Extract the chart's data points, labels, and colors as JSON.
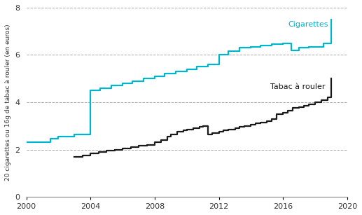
{
  "cigarettes_x": [
    2000,
    2001,
    2001.5,
    2002,
    2002.5,
    2003,
    2003.5,
    2004,
    2004.3,
    2004.6,
    2005,
    2005.3,
    2005.6,
    2006,
    2006.3,
    2006.6,
    2007,
    2007.3,
    2007.6,
    2008,
    2008.3,
    2008.6,
    2009,
    2009.3,
    2009.6,
    2010,
    2010.3,
    2010.6,
    2011,
    2011.3,
    2011.6,
    2012,
    2012.3,
    2012.6,
    2013,
    2013.3,
    2013.6,
    2014,
    2014.3,
    2014.6,
    2015,
    2015.3,
    2015.6,
    2016,
    2016.3,
    2016.5,
    2016.8,
    2017,
    2017.3,
    2017.6,
    2018,
    2018.5,
    2019
  ],
  "cigarettes_y": [
    2.3,
    2.3,
    2.45,
    2.55,
    2.55,
    2.65,
    2.65,
    4.5,
    4.5,
    4.6,
    4.6,
    4.7,
    4.7,
    4.8,
    4.8,
    4.9,
    4.9,
    5.0,
    5.0,
    5.1,
    5.1,
    5.2,
    5.2,
    5.3,
    5.3,
    5.4,
    5.4,
    5.5,
    5.5,
    5.6,
    5.6,
    6.0,
    6.0,
    6.15,
    6.15,
    6.3,
    6.3,
    6.35,
    6.35,
    6.4,
    6.4,
    6.45,
    6.45,
    6.5,
    6.5,
    6.2,
    6.2,
    6.3,
    6.3,
    6.35,
    6.35,
    6.5,
    7.5
  ],
  "tabac_x": [
    2003,
    2003.5,
    2004,
    2004.5,
    2005,
    2005.5,
    2006,
    2006.5,
    2007,
    2007.5,
    2008,
    2008.4,
    2008.8,
    2009,
    2009.4,
    2009.8,
    2010,
    2010.4,
    2010.8,
    2011,
    2011.3,
    2011.6,
    2012,
    2012.3,
    2012.6,
    2013,
    2013.3,
    2013.6,
    2014,
    2014.3,
    2014.6,
    2015,
    2015.3,
    2015.6,
    2016,
    2016.3,
    2016.6,
    2017,
    2017.3,
    2017.6,
    2018,
    2018.4,
    2018.8,
    2019
  ],
  "tabac_y": [
    1.7,
    1.75,
    1.85,
    1.9,
    1.95,
    2.0,
    2.05,
    2.1,
    2.15,
    2.2,
    2.3,
    2.4,
    2.55,
    2.65,
    2.75,
    2.8,
    2.85,
    2.9,
    2.95,
    3.0,
    2.65,
    2.7,
    2.75,
    2.8,
    2.85,
    2.9,
    2.95,
    3.0,
    3.05,
    3.1,
    3.15,
    3.2,
    3.3,
    3.5,
    3.55,
    3.65,
    3.75,
    3.8,
    3.85,
    3.9,
    4.0,
    4.1,
    4.2,
    5.0
  ],
  "cig_color": "#00b4cc",
  "tabac_color": "#1a1a1a",
  "ylabel": "20 cigarettes ou 16g de tabac à rouler (en euros)",
  "xlim": [
    2000,
    2020
  ],
  "ylim": [
    0,
    8
  ],
  "yticks": [
    0,
    2,
    4,
    6,
    8
  ],
  "xticks": [
    2000,
    2004,
    2008,
    2012,
    2016,
    2020
  ],
  "grid_color": "#aaaaaa",
  "label_cig": "Cigarettes",
  "label_tabac": "Tabac à rouler",
  "background_color": "#ffffff",
  "linewidth": 1.6
}
